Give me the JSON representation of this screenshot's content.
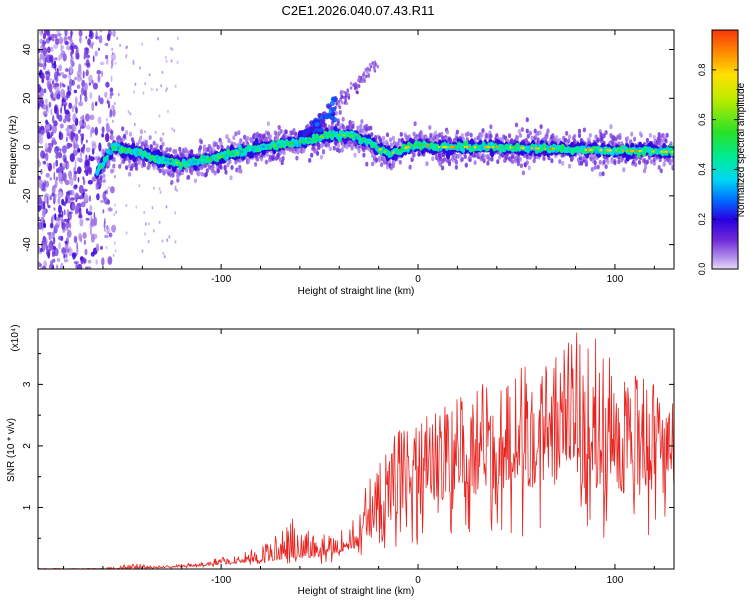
{
  "title": "C2E1.2026.040.07.43.R11",
  "chart_data": [
    {
      "type": "heatmap",
      "xlabel": "Height of straight line (km)",
      "ylabel": "Frequency (Hz)",
      "xlim": [
        -193,
        130
      ],
      "ylim": [
        -50,
        48
      ],
      "xticks": [
        -100,
        0,
        100
      ],
      "yticks": [
        -40,
        -20,
        0,
        20,
        40
      ],
      "colorbar": {
        "label": "Normalized spectral amplitude",
        "range": [
          0,
          0.96
        ],
        "ticks": [
          0.0,
          0.2,
          0.4,
          0.6,
          0.8
        ]
      },
      "features": [
        {
          "name": "scattered-noise-band",
          "x_range": [
            -193,
            -160
          ],
          "y_range": [
            -50,
            48
          ],
          "amplitude": 0.15
        },
        {
          "name": "main-ridge",
          "points": [
            [
              -163,
              -11
            ],
            [
              -155,
              0
            ],
            [
              -140,
              -3
            ],
            [
              -120,
              -7
            ],
            [
              -100,
              -4
            ],
            [
              -80,
              0
            ],
            [
              -60,
              2
            ],
            [
              -45,
              5
            ],
            [
              -35,
              5
            ],
            [
              -25,
              2
            ],
            [
              -15,
              -3
            ],
            [
              -5,
              0
            ],
            [
              0,
              1
            ],
            [
              10,
              0
            ],
            [
              40,
              0
            ],
            [
              80,
              -1
            ],
            [
              130,
              -2
            ]
          ],
          "peak_amplitude": 0.9
        },
        {
          "name": "rising-branch",
          "points": [
            [
              -60,
              3
            ],
            [
              -50,
              10
            ],
            [
              -40,
              18
            ],
            [
              -30,
              27
            ],
            [
              -20,
              36
            ]
          ],
          "amplitude": 0.2
        }
      ]
    },
    {
      "type": "line",
      "xlabel": "Height of straight line (km)",
      "ylabel": "SNR (10 * v/v)",
      "y_scale_label": "(x10⁴)",
      "xlim": [
        -193,
        130
      ],
      "ylim": [
        0,
        3.9
      ],
      "xticks": [
        -100,
        0,
        100
      ],
      "yticks": [
        1,
        2,
        3
      ],
      "series": [
        {
          "name": "SNR",
          "color": "#e8231f",
          "envelope": [
            [
              -193,
              0.0
            ],
            [
              -160,
              0.02
            ],
            [
              -145,
              0.1
            ],
            [
              -130,
              0.05
            ],
            [
              -110,
              0.12
            ],
            [
              -90,
              0.25
            ],
            [
              -75,
              0.45
            ],
            [
              -65,
              0.9
            ],
            [
              -50,
              0.6
            ],
            [
              -35,
              0.7
            ],
            [
              -28,
              1.2
            ],
            [
              -20,
              1.9
            ],
            [
              -12,
              2.2
            ],
            [
              -5,
              2.6
            ],
            [
              0,
              2.4
            ],
            [
              10,
              2.6
            ],
            [
              20,
              2.8
            ],
            [
              30,
              3.0
            ],
            [
              40,
              3.2
            ],
            [
              50,
              3.5
            ],
            [
              60,
              3.4
            ],
            [
              70,
              3.5
            ],
            [
              80,
              3.9
            ],
            [
              90,
              3.8
            ],
            [
              100,
              3.3
            ],
            [
              110,
              3.2
            ],
            [
              120,
              3.0
            ],
            [
              130,
              2.8
            ]
          ],
          "baseline": [
            [
              -193,
              0.0
            ],
            [
              -160,
              0.0
            ],
            [
              -130,
              0.02
            ],
            [
              -110,
              0.05
            ],
            [
              -90,
              0.1
            ],
            [
              -70,
              0.15
            ],
            [
              -50,
              0.2
            ],
            [
              -30,
              0.35
            ],
            [
              -20,
              0.6
            ],
            [
              -10,
              0.9
            ],
            [
              0,
              1.0
            ],
            [
              10,
              1.1
            ],
            [
              30,
              1.2
            ],
            [
              50,
              1.3
            ],
            [
              70,
              1.35
            ],
            [
              90,
              1.3
            ],
            [
              110,
              1.2
            ],
            [
              130,
              1.2
            ]
          ]
        }
      ]
    }
  ]
}
